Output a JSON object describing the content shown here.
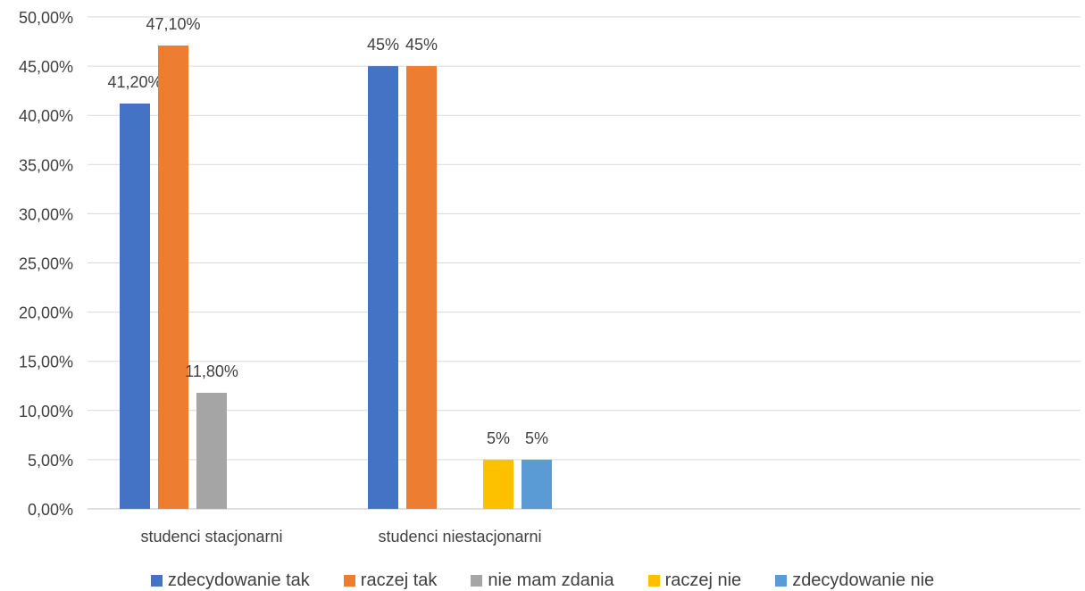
{
  "chart_data": {
    "type": "bar",
    "categories": [
      "studenci stacjonarni",
      "studenci niestacjonarni",
      "",
      ""
    ],
    "series": [
      {
        "name": "zdecydowanie tak",
        "color": "#4472C4",
        "values": [
          41.2,
          45,
          null,
          null
        ],
        "labels": [
          "41,20%",
          "45%",
          "",
          ""
        ]
      },
      {
        "name": "raczej tak",
        "color": "#ED7D31",
        "values": [
          47.1,
          45,
          null,
          null
        ],
        "labels": [
          "47,10%",
          "45%",
          "",
          ""
        ]
      },
      {
        "name": "nie mam zdania",
        "color": "#A5A5A5",
        "values": [
          11.8,
          null,
          null,
          null
        ],
        "labels": [
          "11,80%",
          "",
          "",
          ""
        ]
      },
      {
        "name": "raczej nie",
        "color": "#FFC000",
        "values": [
          null,
          5,
          null,
          null
        ],
        "labels": [
          "",
          "5%",
          "",
          ""
        ]
      },
      {
        "name": "zdecydowanie nie",
        "color": "#5B9BD5",
        "values": [
          null,
          5,
          null,
          null
        ],
        "labels": [
          "",
          "5%",
          "",
          ""
        ]
      }
    ],
    "yticks": [
      "0,00%",
      "5,00%",
      "10,00%",
      "15,00%",
      "20,00%",
      "25,00%",
      "30,00%",
      "35,00%",
      "40,00%",
      "45,00%",
      "50,00%"
    ],
    "ylim": [
      0,
      50
    ],
    "grid": true,
    "legend": "bottom",
    "title": "",
    "xlabel": "",
    "ylabel": ""
  }
}
